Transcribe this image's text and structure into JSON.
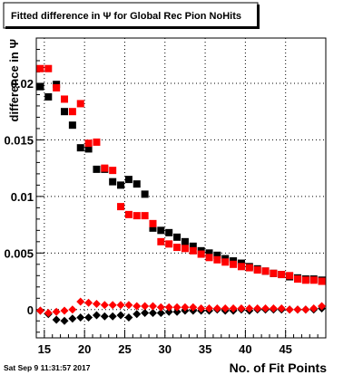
{
  "chart_data": {
    "type": "scatter",
    "title": "Fitted difference in  Ψ  for Global Rec Pion NoHits",
    "xlabel": "No. of Fit Points",
    "ylabel": "difference in  Ψ",
    "footer": "Sat Sep  9 11:31:57 2017",
    "xlim": [
      14,
      50
    ],
    "ylim": [
      -0.0025,
      0.024
    ],
    "grid": true,
    "x_ticks": [
      15,
      20,
      25,
      30,
      35,
      40,
      45
    ],
    "y_ticks": [
      0,
      0.005,
      0.01,
      0.015,
      0.02
    ],
    "x_tick_labels": [
      "15",
      "20",
      "25",
      "30",
      "35",
      "40",
      "45"
    ],
    "y_tick_labels": [
      "0",
      "0.005",
      "0.01",
      "0.015",
      "0.02"
    ],
    "series": [
      {
        "marker": "square",
        "color": "#000000",
        "x": [
          14.5,
          15.5,
          16.5,
          17.5,
          18.5,
          19.5,
          20.5,
          21.5,
          22.5,
          23.5,
          24.5,
          25.5,
          26.5,
          27.5,
          28.5,
          29.5,
          30.5,
          31.5,
          32.5,
          33.5,
          34.5,
          35.5,
          36.5,
          37.5,
          38.5,
          39.5,
          40.5,
          41.5,
          42.5,
          43.5,
          44.5,
          45.5,
          46.5,
          47.5,
          48.5,
          49.5
        ],
        "y": [
          0.0197,
          0.0188,
          0.0199,
          0.0175,
          0.0163,
          0.0143,
          0.0142,
          0.0124,
          0.0124,
          0.0113,
          0.011,
          0.0115,
          0.0111,
          0.0102,
          0.0072,
          0.007,
          0.0068,
          0.0064,
          0.006,
          0.0056,
          0.0052,
          0.005,
          0.0048,
          0.0045,
          0.0043,
          0.0041,
          0.0038,
          0.0036,
          0.0034,
          0.0032,
          0.0031,
          0.0029,
          0.0028,
          0.0027,
          0.0027,
          0.0026
        ]
      },
      {
        "marker": "square",
        "color": "#ff0000",
        "x": [
          14.5,
          15.5,
          16.5,
          17.5,
          18.5,
          19.5,
          20.5,
          21.5,
          22.5,
          23.5,
          24.5,
          25.5,
          26.5,
          27.5,
          28.5,
          29.5,
          30.5,
          31.5,
          32.5,
          33.5,
          34.5,
          35.5,
          36.5,
          37.5,
          38.5,
          39.5,
          40.5,
          41.5,
          42.5,
          43.5,
          44.5,
          45.5,
          46.5,
          47.5,
          48.5,
          49.5
        ],
        "y": [
          0.0213,
          0.0213,
          0.0196,
          0.0186,
          0.0175,
          0.0182,
          0.0147,
          0.0148,
          0.0125,
          0.0123,
          0.0091,
          0.0084,
          0.0083,
          0.0083,
          0.0076,
          0.006,
          0.0058,
          0.0055,
          0.0054,
          0.0052,
          0.0049,
          0.0046,
          0.0044,
          0.0042,
          0.004,
          0.0038,
          0.0037,
          0.0035,
          0.0034,
          0.0032,
          0.0031,
          0.003,
          0.0027,
          0.0026,
          0.0026,
          0.0025
        ]
      },
      {
        "marker": "diamond",
        "color": "#000000",
        "x": [
          14.5,
          15.5,
          16.5,
          17.5,
          18.5,
          19.5,
          20.5,
          21.5,
          22.5,
          23.5,
          24.5,
          25.5,
          26.5,
          27.5,
          28.5,
          29.5,
          30.5,
          31.5,
          32.5,
          33.5,
          34.5,
          35.5,
          36.5,
          37.5,
          38.5,
          39.5,
          40.5,
          41.5,
          42.5,
          43.5,
          44.5,
          45.5,
          46.5,
          47.5,
          48.5,
          49.5
        ],
        "y": [
          -0.0001,
          -0.0004,
          -0.0009,
          -0.001,
          -0.0008,
          -0.0007,
          -0.0007,
          -0.0005,
          -0.0006,
          -0.0006,
          -0.0005,
          -0.0007,
          -0.0004,
          -0.0003,
          -0.0003,
          -0.0003,
          -0.0002,
          -0.0002,
          -0.0001,
          -0.0001,
          -0.0001,
          -0.0001,
          0.0,
          -0.0001,
          -0.0001,
          0.0,
          -0.0001,
          0.0,
          0.0,
          0.0,
          0.0,
          0.0,
          0.0,
          0.0,
          0.0,
          0.0001
        ]
      },
      {
        "marker": "diamond",
        "color": "#ff0000",
        "x": [
          14.5,
          15.5,
          16.5,
          17.5,
          18.5,
          19.5,
          20.5,
          21.5,
          22.5,
          23.5,
          24.5,
          25.5,
          26.5,
          27.5,
          28.5,
          29.5,
          30.5,
          31.5,
          32.5,
          33.5,
          34.5,
          35.5,
          36.5,
          37.5,
          38.5,
          39.5,
          40.5,
          41.5,
          42.5,
          43.5,
          44.5,
          45.5,
          46.5,
          47.5,
          48.5,
          49.5
        ],
        "y": [
          -0.0001,
          -0.0003,
          -0.0002,
          -0.0001,
          0.0,
          0.0007,
          0.0006,
          0.0005,
          0.0004,
          0.0004,
          0.0004,
          0.0004,
          0.0003,
          0.0003,
          0.0003,
          0.0002,
          0.0002,
          0.0002,
          0.0002,
          0.0002,
          0.0001,
          0.0001,
          0.0001,
          0.0001,
          0.0001,
          0.0001,
          0.0001,
          0.0001,
          0.0001,
          0.0001,
          0.0001,
          0.0,
          0.0,
          0.0,
          0.0001,
          0.0003
        ]
      }
    ]
  }
}
